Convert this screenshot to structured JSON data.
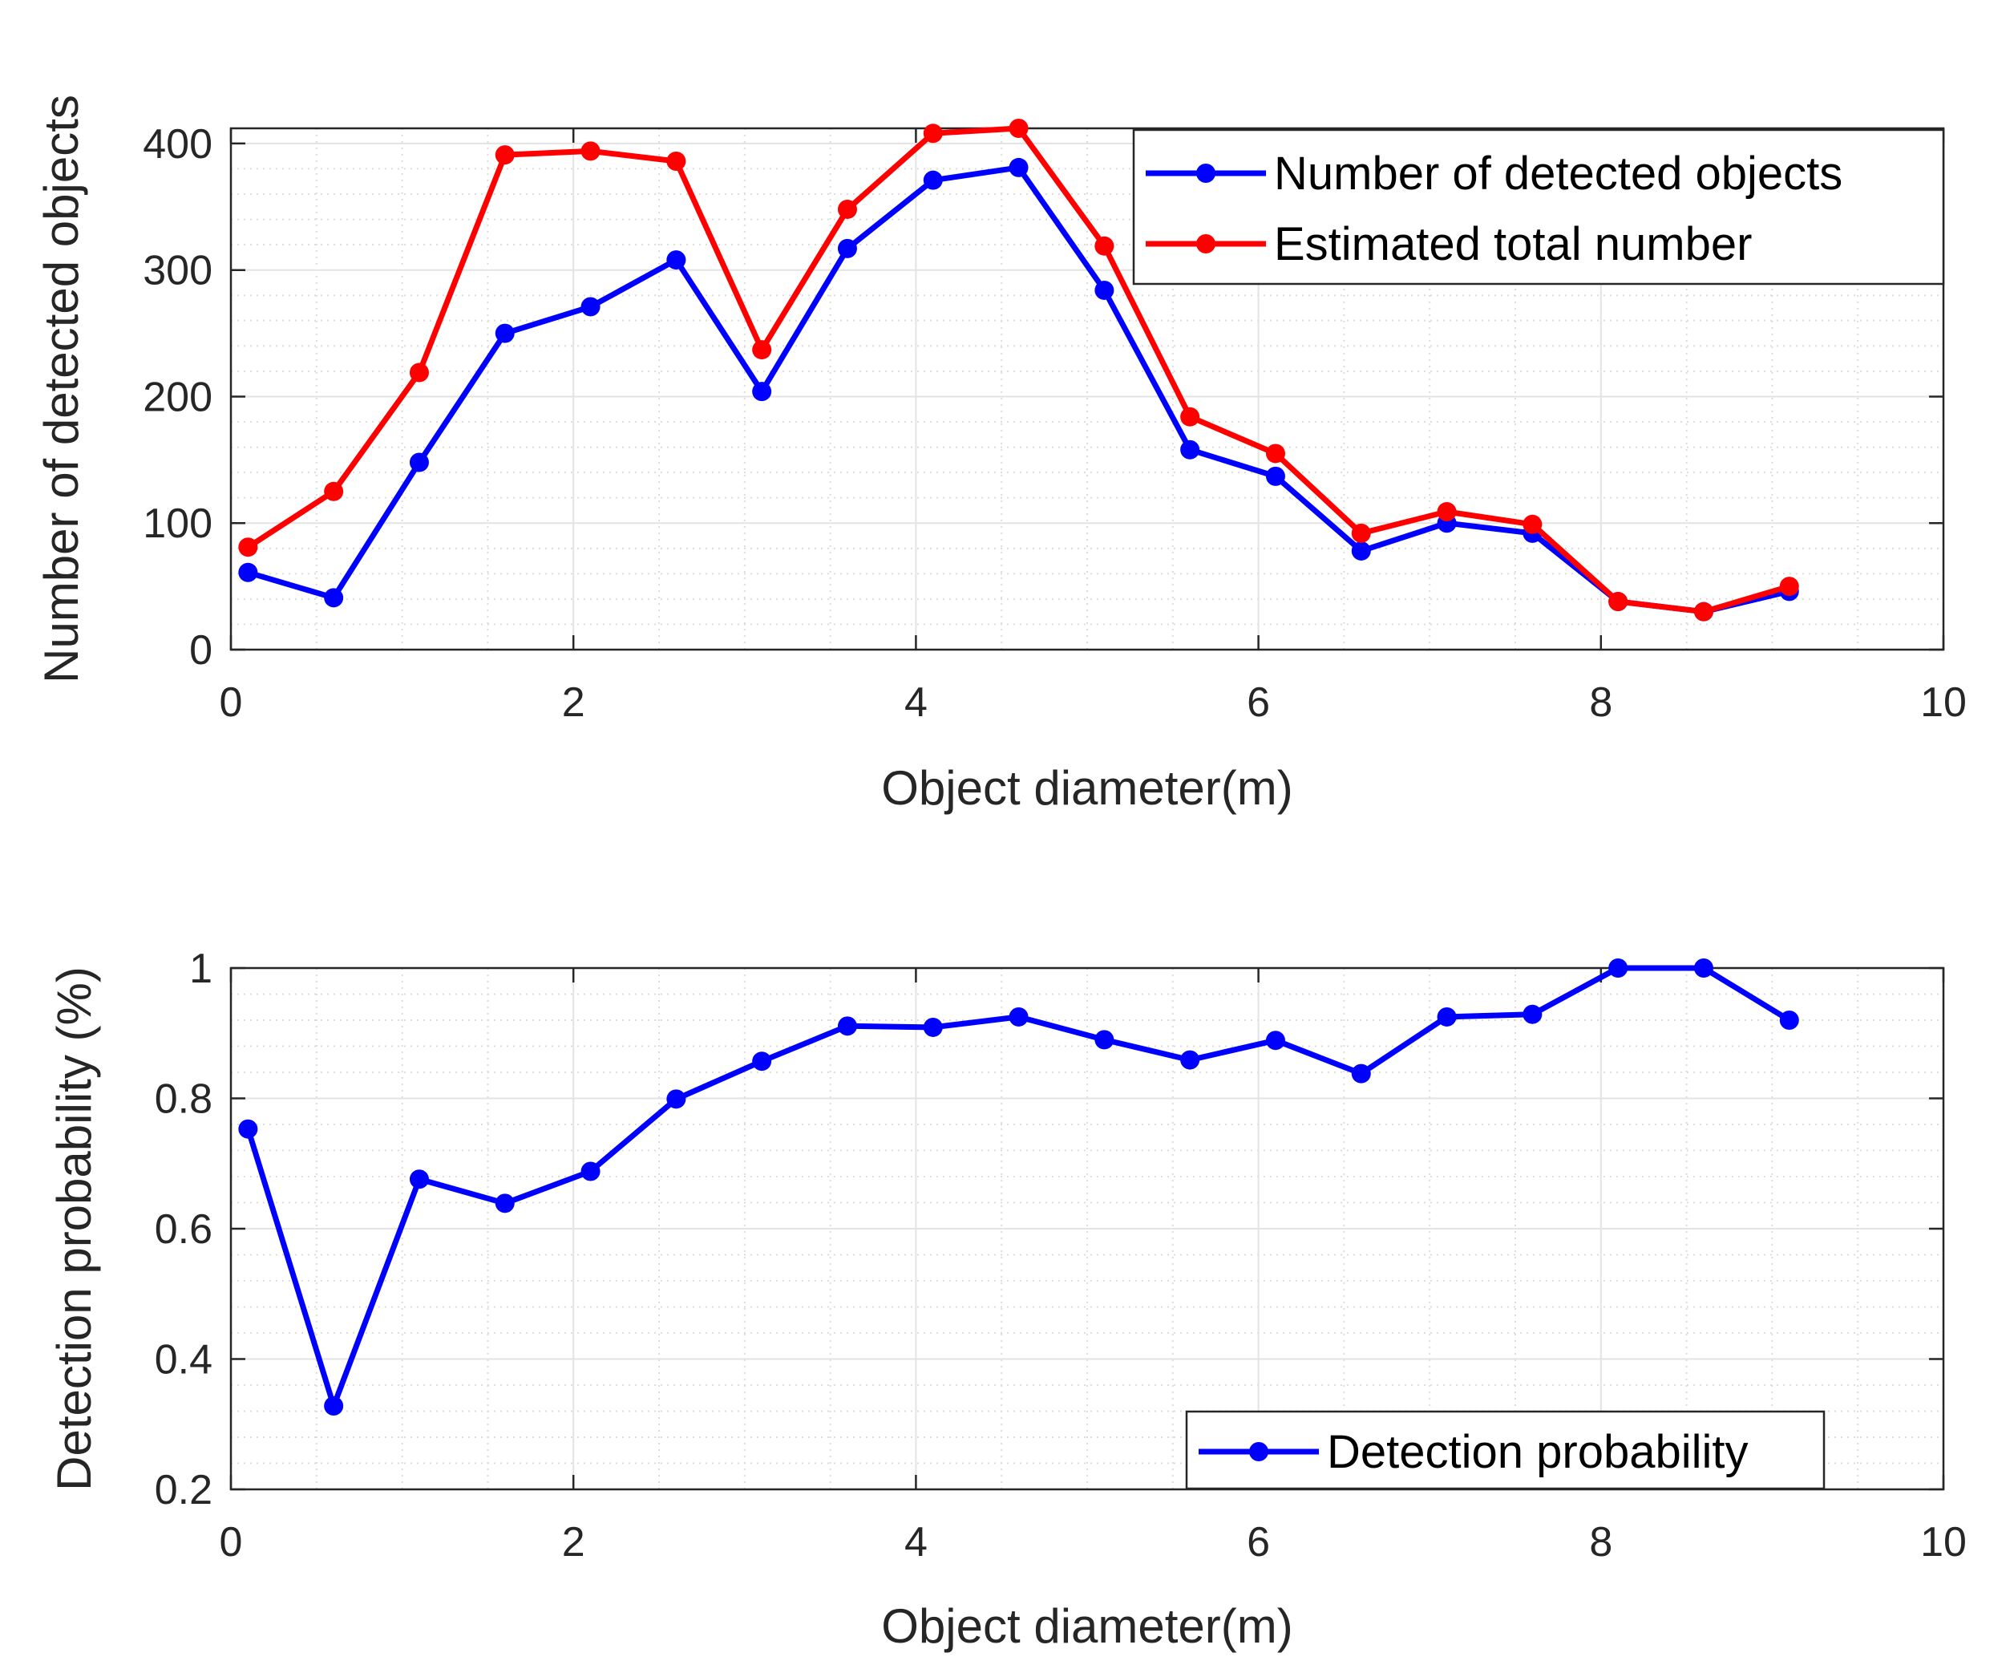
{
  "chart_data": [
    {
      "type": "line",
      "xlabel": "Object diameter(m)",
      "ylabel": "Number of detected objects",
      "xlim": [
        0,
        10
      ],
      "ylim": [
        0,
        412
      ],
      "xticks": [
        "0",
        "2",
        "4",
        "6",
        "8",
        "10"
      ],
      "yticks": [
        "0",
        "100",
        "200",
        "300",
        "400"
      ],
      "grid": true,
      "minor_grid": true,
      "legend_position": "top-right",
      "x": [
        0.1,
        0.6,
        1.1,
        1.6,
        2.1,
        2.6,
        3.1,
        3.6,
        4.1,
        4.6,
        5.1,
        5.6,
        6.1,
        6.6,
        7.1,
        7.6,
        8.1,
        8.6,
        9.1
      ],
      "series": [
        {
          "name": "Number of detected objects",
          "color": "#0000ff",
          "values": [
            61,
            41,
            148,
            250,
            271,
            308,
            204,
            317,
            371,
            381,
            284,
            158,
            137,
            78,
            100,
            92,
            38,
            30,
            46
          ]
        },
        {
          "name": "Estimated total number",
          "color": "#ff0000",
          "values": [
            81,
            125,
            219,
            391,
            394,
            386,
            237,
            348,
            408,
            412,
            319,
            184,
            155,
            92,
            109,
            99,
            38,
            30,
            50
          ]
        }
      ]
    },
    {
      "type": "line",
      "xlabel": "Object diameter(m)",
      "ylabel": "Detection probability (%)",
      "xlim": [
        0,
        10
      ],
      "ylim": [
        0.2,
        1.0
      ],
      "xticks": [
        "0",
        "2",
        "4",
        "6",
        "8",
        "10"
      ],
      "yticks": [
        "0.2",
        "0.4",
        "0.6",
        "0.8",
        "1"
      ],
      "grid": true,
      "minor_grid": true,
      "legend_position": "bottom-right",
      "x": [
        0.1,
        0.6,
        1.1,
        1.6,
        2.1,
        2.6,
        3.1,
        3.6,
        4.1,
        4.6,
        5.1,
        5.6,
        6.1,
        6.6,
        7.1,
        7.6,
        8.1,
        8.6,
        9.1
      ],
      "series": [
        {
          "name": "Detection probability",
          "color": "#0000ff",
          "values": [
            0.753,
            0.328,
            0.676,
            0.639,
            0.688,
            0.799,
            0.857,
            0.911,
            0.909,
            0.925,
            0.89,
            0.859,
            0.889,
            0.838,
            0.925,
            0.929,
            1.0,
            1.0,
            0.92
          ]
        }
      ]
    }
  ]
}
